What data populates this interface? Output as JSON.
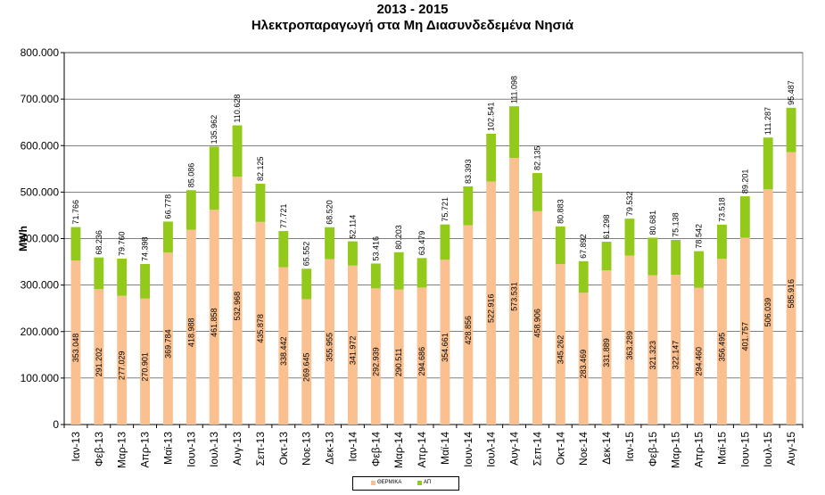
{
  "chart_data": {
    "type": "bar",
    "stacked": true,
    "title": "2013 - 2015",
    "subtitle": "Ηλεκτροπαραγωγή στα Μη Διασυνδεδεμένα Νησιά",
    "ylabel": "MWh",
    "ylim": [
      0,
      800000
    ],
    "yticks": [
      "0",
      "100.000",
      "200.000",
      "300.000",
      "400.000",
      "500.000",
      "600.000",
      "700.000",
      "800.000"
    ],
    "grid": true,
    "legend_position": "bottom",
    "categories": [
      "Ιαν-13",
      "Φεβ-13",
      "Μαρ-13",
      "Απρ-13",
      "Μαϊ-13",
      "Ιουν-13",
      "Ιουλ-13",
      "Αυγ-13",
      "Σεπ-13",
      "Οκτ-13",
      "Νοε-13",
      "Δεκ-13",
      "Ιαν-14",
      "Φεβ-14",
      "Μαρ-14",
      "Απρ-14",
      "Μαϊ-14",
      "Ιουν-14",
      "Ιουλ-14",
      "Αυγ-14",
      "Σεπ-14",
      "Οκτ-14",
      "Νοε-14",
      "Δεκ-14",
      "Ιαν-15",
      "Φεβ-15",
      "Μαρ-15",
      "Απρ-15",
      "Μαϊ-15",
      "Ιουν-15",
      "Ιουλ-15",
      "Αυγ-15"
    ],
    "series": [
      {
        "name": "ΘΕΡΜΙΚΑ",
        "color": "#FAC090",
        "values": [
          353048,
          291202,
          277029,
          270901,
          369784,
          418988,
          461858,
          532968,
          435878,
          338442,
          269645,
          355955,
          341972,
          292939,
          290511,
          294686,
          354661,
          428856,
          522916,
          573531,
          458906,
          345262,
          283469,
          331889,
          363289,
          321323,
          322147,
          294460,
          356495,
          401757,
          506039,
          585916
        ],
        "labels": [
          "353.048",
          "291.202",
          "277.029",
          "270.901",
          "369.784",
          "418.988",
          "461.858",
          "532.968",
          "435.878",
          "338.442",
          "269.645",
          "355.955",
          "341.972",
          "292.939",
          "290.511",
          "294.686",
          "354.661",
          "428.856",
          "522.916",
          "573.531",
          "458.906",
          "345.262",
          "283.469",
          "331.889",
          "363.289",
          "321.323",
          "322.147",
          "294.460",
          "356.495",
          "401.757",
          "506.039",
          "585.916"
        ]
      },
      {
        "name": "ΑΠΕ",
        "color": "#92C91A",
        "values": [
          71766,
          68236,
          79760,
          74398,
          66778,
          85086,
          135962,
          110628,
          82125,
          77721,
          65552,
          68520,
          52114,
          53416,
          80203,
          63479,
          75721,
          83393,
          102541,
          111098,
          82135,
          80883,
          67892,
          61298,
          79532,
          80681,
          75138,
          78542,
          73518,
          89201,
          111287,
          95487
        ],
        "labels": [
          "71.766",
          "68.236",
          "79.760",
          "74.398",
          "66.778",
          "85.086",
          "135.962",
          "110.628",
          "82.125",
          "77.721",
          "65.552",
          "68.520",
          "52.114",
          "53.416",
          "80.203",
          "63.479",
          "75.721",
          "83.393",
          "102.541",
          "111.098",
          "82.135",
          "80.883",
          "67.892",
          "61.298",
          "79.532",
          "80.681",
          "75.138",
          "78.542",
          "73.518",
          "89.201",
          "111.287",
          "95.487"
        ]
      }
    ]
  },
  "legend": {
    "items": [
      {
        "label": "ΘΕΡΜΙΚΑ",
        "color": "#FAC090"
      },
      {
        "label": "ΑΠ",
        "color": "#92C91A"
      }
    ]
  }
}
